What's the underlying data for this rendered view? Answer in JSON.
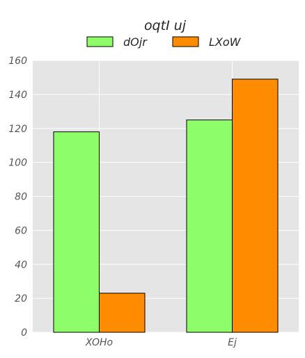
{
  "chart_data": {
    "type": "bar",
    "title": "oqtI  uj",
    "legend_placement": "top-center",
    "categories": [
      "XOHo",
      "Ej"
    ],
    "series": [
      {
        "name": "dOjr",
        "color": "#8dfd6a",
        "values": [
          118,
          125
        ]
      },
      {
        "name": "LXoW",
        "color": "#ff8c00",
        "values": [
          23,
          149
        ]
      }
    ],
    "ylim": [
      0,
      160
    ],
    "yticks": [
      "0",
      "20",
      "40",
      "60",
      "80",
      "100",
      "120",
      "140",
      "160"
    ],
    "grid": true,
    "background": "#e5e5e5"
  }
}
